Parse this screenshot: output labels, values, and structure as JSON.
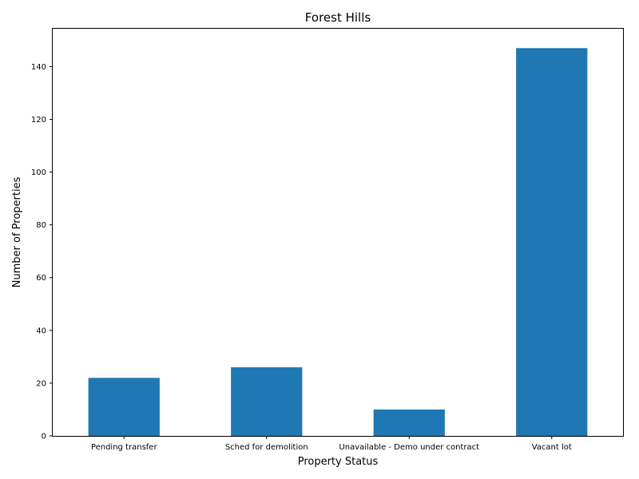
{
  "chart_data": {
    "type": "bar",
    "title": "Forest Hills",
    "xlabel": "Property Status",
    "ylabel": "Number of Properties",
    "categories": [
      "Pending transfer",
      "Sched for demolition",
      "Unavailable - Demo under contract",
      "Vacant lot"
    ],
    "values": [
      22,
      26,
      10,
      147
    ],
    "ylim": [
      0,
      154.35
    ],
    "yticks": [
      0,
      20,
      40,
      60,
      80,
      100,
      120,
      140
    ],
    "bar_color": "#1f77b4",
    "grid": false,
    "legend": "none"
  }
}
